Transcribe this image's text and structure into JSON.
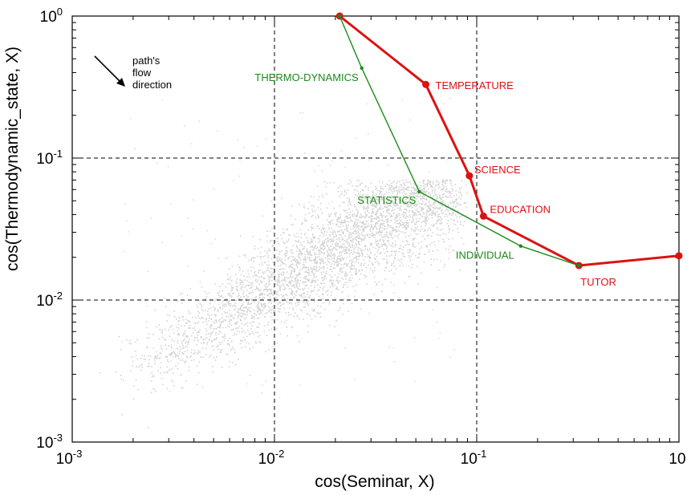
{
  "chart_data": {
    "type": "scatter",
    "xlabel": "cos(Seminar, X)",
    "ylabel": "cos(Thermodynamic_state, X)",
    "xscale": "log",
    "yscale": "log",
    "xlim": [
      0.001,
      1
    ],
    "ylim": [
      0.001,
      1
    ],
    "ticks": [
      {
        "value": 0.001,
        "base": "10",
        "exp": "-3"
      },
      {
        "value": 0.01,
        "base": "10",
        "exp": "-2"
      },
      {
        "value": 0.1,
        "base": "10",
        "exp": "-1"
      },
      {
        "value": 1,
        "base": "10",
        "exp": "0"
      }
    ],
    "grid_lines": [
      0.01,
      0.1
    ],
    "y_tick_overrides": {
      "0": "1.0"
    },
    "x_tick_overrides": {
      "3": "10"
    },
    "background_cloud": {
      "color": "#d3d3d3",
      "shape": "diagonal cloud from ~0.002 to ~0.1"
    },
    "series": [
      {
        "color": "#dd1111",
        "points": [
          {
            "x": 0.021,
            "y": 1.0,
            "label": ""
          },
          {
            "x": 0.056,
            "y": 0.33,
            "label": "TEMPERATURE"
          },
          {
            "x": 0.092,
            "y": 0.075,
            "label": "SCIENCE"
          },
          {
            "x": 0.108,
            "y": 0.039,
            "label": "EDUCATION"
          },
          {
            "x": 0.32,
            "y": 0.0175,
            "label": "TUTOR"
          },
          {
            "x": 1.0,
            "y": 0.0205,
            "label": ""
          }
        ]
      },
      {
        "color": "#1a8a1a",
        "points": [
          {
            "x": 0.021,
            "y": 1.0,
            "label": ""
          },
          {
            "x": 0.027,
            "y": 0.43,
            "label": "THERMO-DYNAMICS"
          },
          {
            "x": 0.052,
            "y": 0.058,
            "label": "STATISTICS"
          },
          {
            "x": 0.165,
            "y": 0.024,
            "label": "INDIVIDUAL"
          },
          {
            "x": 0.32,
            "y": 0.0175,
            "label": ""
          }
        ]
      }
    ],
    "annotation": {
      "lines": [
        "path's",
        "flow",
        "direction"
      ]
    }
  }
}
